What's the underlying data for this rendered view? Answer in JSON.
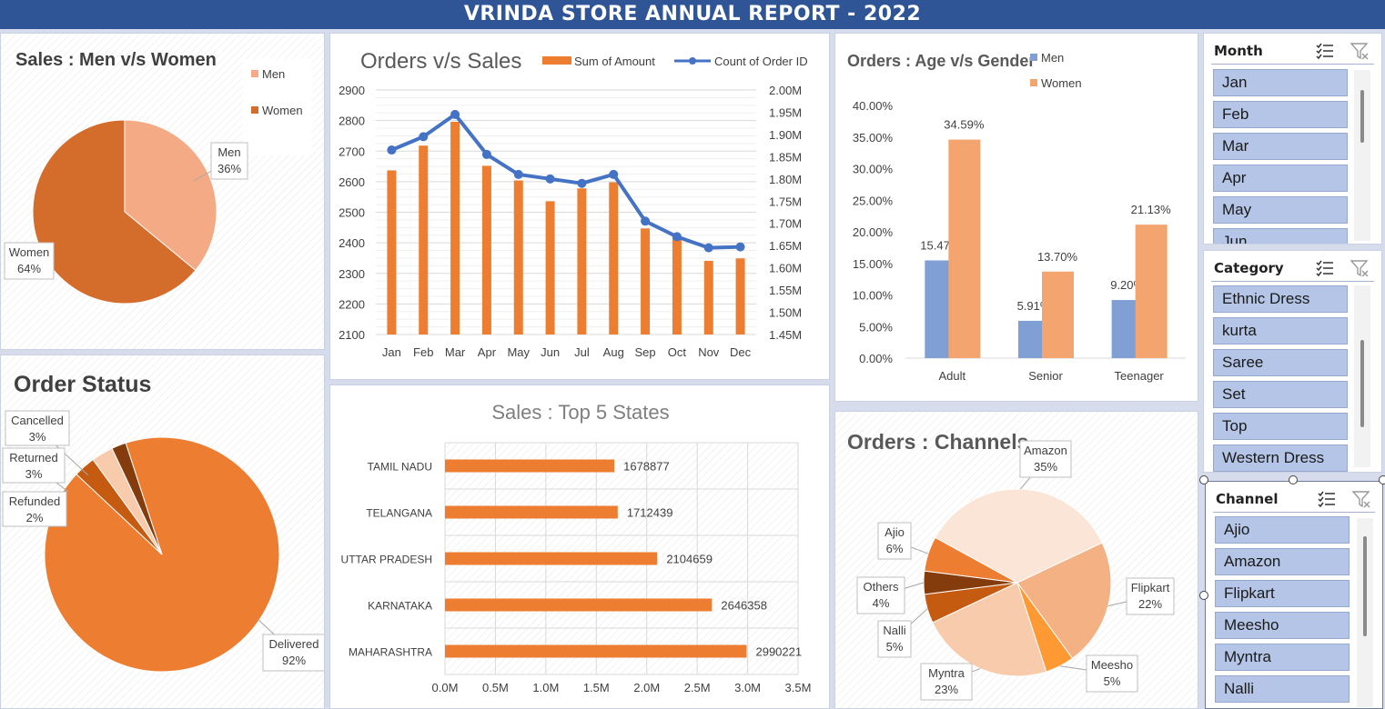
{
  "report_title": "VRINDA STORE ANNUAL REPORT - 2022",
  "colors": {
    "orange": "#ed7d31",
    "blue": "#4472c4",
    "light_blue_bar": "#7f9fd5",
    "light_orange_bar": "#f4a56f",
    "header_blue": "#2f5597",
    "slicer_item": "#b4c5e7"
  },
  "chart_data": [
    {
      "id": "gender",
      "type": "pie",
      "title": "Sales : Men v/s Women",
      "legend_position": "top-right",
      "labels": [
        "Men",
        "Women"
      ],
      "values": [
        36,
        64
      ],
      "data_labels": [
        "36%",
        "64%"
      ],
      "colors": [
        "#f4aa85",
        "#d46c2b"
      ]
    },
    {
      "id": "orders_sales",
      "type": "bar",
      "title": "Orders v/s Sales",
      "legend_position": "top",
      "categories": [
        "Jan",
        "Feb",
        "Mar",
        "Apr",
        "May",
        "Jun",
        "Jul",
        "Aug",
        "Sep",
        "Oct",
        "Nov",
        "Dec"
      ],
      "series": [
        {
          "name": "Sum of Amount",
          "kind": "bar",
          "axis": "left",
          "values": [
            2637,
            2718,
            2796,
            2652,
            2604,
            2536,
            2578,
            2598,
            2447,
            2418,
            2341,
            2349
          ],
          "color": "#ed7d31"
        },
        {
          "name": "Count of Order ID",
          "kind": "line",
          "axis": "right",
          "values": [
            1.865,
            1.895,
            1.945,
            1.855,
            1.81,
            1.8,
            1.79,
            1.81,
            1.705,
            1.67,
            1.645,
            1.647
          ],
          "color": "#4472c4"
        }
      ],
      "ylim_left": [
        2100,
        2900
      ],
      "yticks_left": [
        "2100",
        "2200",
        "2300",
        "2400",
        "2500",
        "2600",
        "2700",
        "2800",
        "2900"
      ],
      "ylim_right": [
        1.45,
        2.0
      ],
      "yticks_right": [
        "1.45M",
        "1.50M",
        "1.55M",
        "1.60M",
        "1.65M",
        "1.70M",
        "1.75M",
        "1.80M",
        "1.85M",
        "1.90M",
        "1.95M",
        "2.00M"
      ],
      "grid": true
    },
    {
      "id": "age_gender",
      "type": "bar",
      "title": "Orders : Age v/s Gender",
      "legend_position": "top-right",
      "categories": [
        "Adult",
        "Senior",
        "Teenager"
      ],
      "series": [
        {
          "name": "Men",
          "values": [
            15.47,
            5.91,
            9.2
          ],
          "labels": [
            "15.47%",
            "5.91%",
            "9.20%"
          ],
          "color": "#7f9fd5"
        },
        {
          "name": "Women",
          "values": [
            34.59,
            13.7,
            21.13
          ],
          "labels": [
            "34.59%",
            "13.70%",
            "21.13%"
          ],
          "color": "#f4a56f"
        }
      ],
      "ylim": [
        0,
        40
      ],
      "yticks": [
        "0.00%",
        "5.00%",
        "10.00%",
        "15.00%",
        "20.00%",
        "25.00%",
        "30.00%",
        "35.00%",
        "40.00%"
      ],
      "grid": false
    },
    {
      "id": "order_status",
      "type": "pie",
      "title": "Order Status",
      "labels": [
        "Delivered",
        "Cancelled",
        "Returned",
        "Refunded"
      ],
      "values": [
        92,
        3,
        3,
        2
      ],
      "data_labels": [
        "92%",
        "3%",
        "3%",
        "2%"
      ],
      "colors": [
        "#ed7d31",
        "#c55a11",
        "#f8cbad",
        "#843c0c"
      ]
    },
    {
      "id": "top_states",
      "type": "bar",
      "orientation": "horizontal",
      "title": "Sales : Top 5 States",
      "categories": [
        "TAMIL NADU",
        "TELANGANA",
        "UTTAR PRADESH",
        "KARNATAKA",
        "MAHARASHTRA"
      ],
      "values": [
        1678877,
        1712439,
        2104659,
        2646358,
        2990221
      ],
      "data_labels": [
        "1678877",
        "1712439",
        "2104659",
        "2646358",
        "2990221"
      ],
      "xlim": [
        0,
        3500000
      ],
      "xticks": [
        "0.0M",
        "0.5M",
        "1.0M",
        "1.5M",
        "2.0M",
        "2.5M",
        "3.0M",
        "3.5M"
      ],
      "color": "#ed7d31"
    },
    {
      "id": "channels",
      "type": "pie",
      "title": "Orders : Channels",
      "labels": [
        "Amazon",
        "Flipkart",
        "Meesho",
        "Myntra",
        "Nalli",
        "Others",
        "Ajio"
      ],
      "values": [
        35,
        22,
        5,
        23,
        5,
        4,
        6
      ],
      "data_labels": [
        "35%",
        "22%",
        "5%",
        "23%",
        "5%",
        "4%",
        "6%"
      ],
      "colors": [
        "#fbe5d6",
        "#f4b183",
        "#ff9933",
        "#f8cbad",
        "#c55a11",
        "#843c0c",
        "#ed7d31"
      ]
    }
  ],
  "slicers": {
    "month": {
      "title": "Month",
      "items": [
        "Jan",
        "Feb",
        "Mar",
        "Apr",
        "May",
        "Jun"
      ],
      "filter_icon": "multi-select-icon",
      "clear_icon": "clear-filter-icon"
    },
    "category": {
      "title": "Category",
      "items": [
        "Ethnic Dress",
        "kurta",
        "Saree",
        "Set",
        "Top",
        "Western Dress"
      ],
      "filter_icon": "multi-select-icon",
      "clear_icon": "clear-filter-icon"
    },
    "channel": {
      "title": "Channel",
      "items": [
        "Ajio",
        "Amazon",
        "Flipkart",
        "Meesho",
        "Myntra",
        "Nalli"
      ],
      "filter_icon": "multi-select-icon",
      "clear_icon": "clear-filter-icon"
    }
  }
}
